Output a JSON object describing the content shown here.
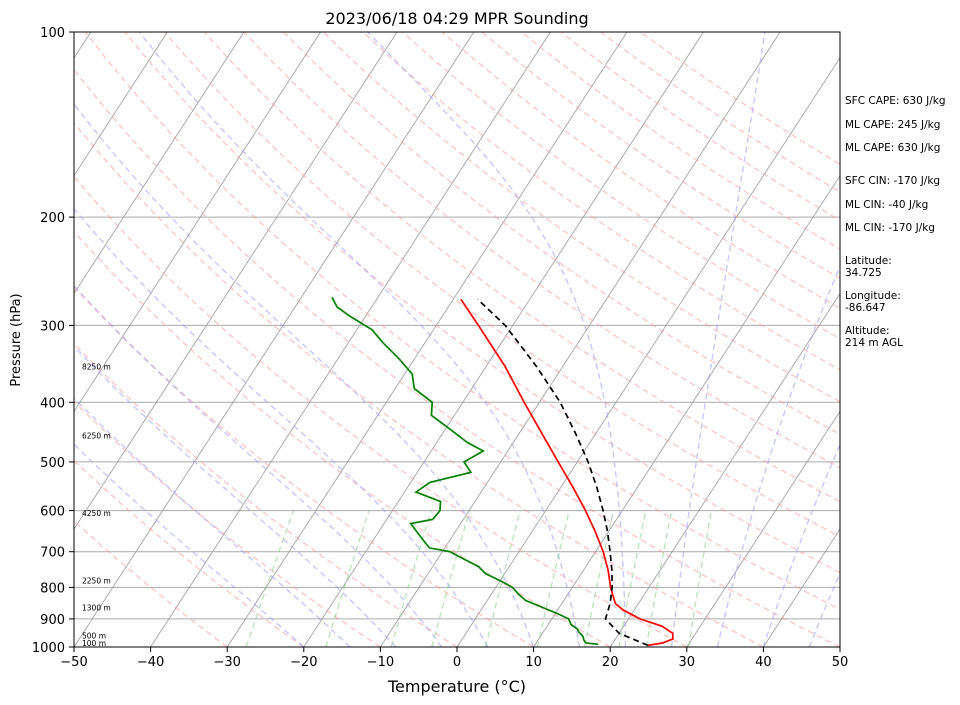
{
  "chart_data": {
    "type": "line",
    "title": "2023/06/18 04:29 MPR Sounding",
    "xlabel": "Temperature (°C)",
    "ylabel": "Pressure (hPa)",
    "xlim": [
      -50,
      50
    ],
    "ylim": [
      1000,
      100
    ],
    "yscale": "log",
    "x_ticks": [
      -50,
      -40,
      -30,
      -20,
      -10,
      0,
      10,
      20,
      30,
      40,
      50
    ],
    "x_tick_labels": [
      "−50",
      "−40",
      "−30",
      "−20",
      "−10",
      "0",
      "10",
      "20",
      "30",
      "40",
      "50"
    ],
    "y_ticks": [
      100,
      200,
      300,
      400,
      500,
      600,
      700,
      800,
      900,
      1000
    ],
    "y_tick_labels": [
      "100",
      "200",
      "300",
      "400",
      "500",
      "600",
      "700",
      "800",
      "900",
      "1000"
    ],
    "height_labels": [
      {
        "p": 986,
        "text": "100 m"
      },
      {
        "p": 957,
        "text": "500 m"
      },
      {
        "p": 863,
        "text": "1300 m"
      },
      {
        "p": 780,
        "text": "2250 m"
      },
      {
        "p": 605,
        "text": "4250 m"
      },
      {
        "p": 453,
        "text": "6250 m"
      },
      {
        "p": 350,
        "text": "8250 m"
      }
    ],
    "series": [
      {
        "color": "#ff0000",
        "style": "solid",
        "points": [
          [
            994,
            24.8
          ],
          [
            985,
            26.5
          ],
          [
            970,
            27.5
          ],
          [
            950,
            27.0
          ],
          [
            925,
            25.0
          ],
          [
            900,
            21.5
          ],
          [
            870,
            18.5
          ],
          [
            850,
            17.0
          ],
          [
            820,
            15.8
          ],
          [
            800,
            15.0
          ],
          [
            750,
            13.2
          ],
          [
            700,
            11.0
          ],
          [
            650,
            8.3
          ],
          [
            600,
            5.2
          ],
          [
            550,
            1.6
          ],
          [
            500,
            -2.5
          ],
          [
            450,
            -7.0
          ],
          [
            400,
            -12.0
          ],
          [
            350,
            -17.5
          ],
          [
            300,
            -24.5
          ],
          [
            272,
            -29.0
          ]
        ]
      },
      {
        "color": "#008000",
        "style": "solid",
        "points": [
          [
            990,
            18.2
          ],
          [
            985,
            16.5
          ],
          [
            975,
            16.0
          ],
          [
            960,
            15.5
          ],
          [
            945,
            14.6
          ],
          [
            935,
            14.2
          ],
          [
            920,
            13.0
          ],
          [
            900,
            12.2
          ],
          [
            880,
            10.0
          ],
          [
            860,
            7.5
          ],
          [
            840,
            5.0
          ],
          [
            820,
            3.5
          ],
          [
            800,
            2.2
          ],
          [
            780,
            0.0
          ],
          [
            760,
            -2.5
          ],
          [
            740,
            -4.0
          ],
          [
            720,
            -6.5
          ],
          [
            700,
            -9.0
          ],
          [
            690,
            -12.0
          ],
          [
            670,
            -13.5
          ],
          [
            650,
            -15.0
          ],
          [
            630,
            -16.5
          ],
          [
            620,
            -14.0
          ],
          [
            600,
            -13.8
          ],
          [
            580,
            -14.5
          ],
          [
            560,
            -18.5
          ],
          [
            540,
            -17.5
          ],
          [
            520,
            -13.0
          ],
          [
            500,
            -14.8
          ],
          [
            480,
            -13.2
          ],
          [
            465,
            -16.0
          ],
          [
            445,
            -19.0
          ],
          [
            420,
            -23.0
          ],
          [
            400,
            -24.0
          ],
          [
            380,
            -27.5
          ],
          [
            360,
            -29.0
          ],
          [
            340,
            -32.0
          ],
          [
            320,
            -35.5
          ],
          [
            305,
            -38.0
          ],
          [
            290,
            -42.0
          ],
          [
            280,
            -44.5
          ],
          [
            270,
            -46.0
          ]
        ]
      },
      {
        "color": "#000000",
        "style": "dashed",
        "points": [
          [
            994,
            24.8
          ],
          [
            950,
            20.0
          ],
          [
            900,
            17.0
          ],
          [
            850,
            16.3
          ],
          [
            800,
            15.2
          ],
          [
            750,
            13.7
          ],
          [
            700,
            11.9
          ],
          [
            650,
            9.9
          ],
          [
            600,
            7.5
          ],
          [
            550,
            4.7
          ],
          [
            500,
            1.4
          ],
          [
            450,
            -2.6
          ],
          [
            400,
            -7.3
          ],
          [
            350,
            -13.4
          ],
          [
            300,
            -21.0
          ],
          [
            272,
            -26.8
          ]
        ]
      }
    ]
  },
  "sidebar": {
    "sfc_cape": "SFC CAPE: 630 J/kg",
    "ml_cape_1": "ML CAPE: 245 J/kg",
    "ml_cape_2": "ML CAPE: 630 J/kg",
    "sfc_cin": "SFC CIN: -170 J/kg",
    "ml_cin_1": "ML CIN: -40 J/kg",
    "ml_cin_2": "ML CIN: -170 J/kg",
    "latitude": "Latitude:\n34.725",
    "longitude": "Longitude:\n-86.647",
    "altitude": "Altitude:\n214 m AGL"
  },
  "colors": {
    "temperature": "#ff0000",
    "dewpoint": "#008000",
    "parcel": "#000000",
    "dry_adiabat": "#ff9999",
    "moist_adiabat": "#9999ff",
    "mixing_ratio": "#88cc88",
    "isotherm": "#999999"
  }
}
